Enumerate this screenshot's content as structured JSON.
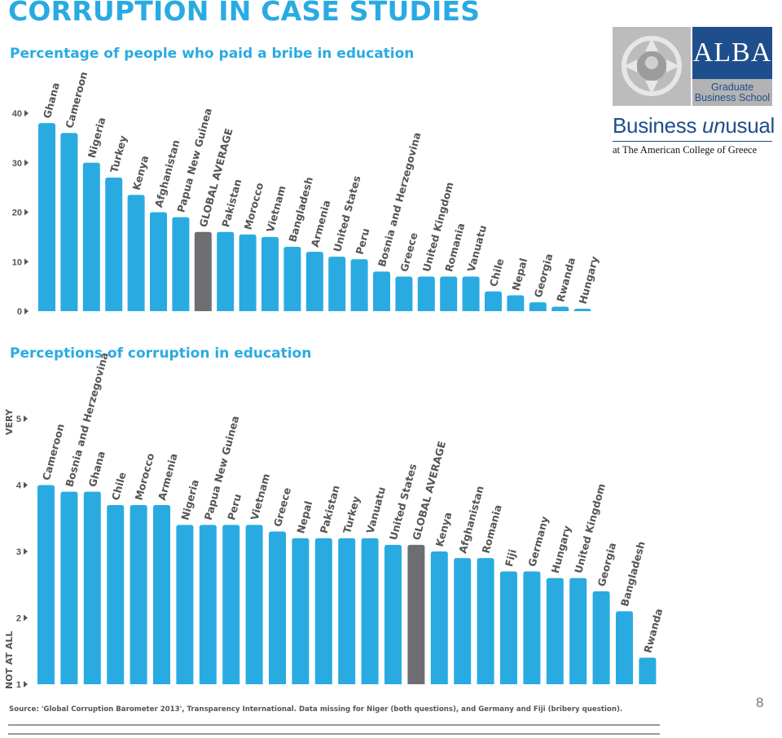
{
  "slide": {
    "title": "CORRUPTION IN CASE STUDIES",
    "source": "Source: 'Global Corruption Barometer 2013', Transparency International. Data missing for Niger (both questions), and Germany and Fiji (bribery question).",
    "page_number": "8"
  },
  "logo": {
    "alba": "ALBA",
    "school_line1": "Graduate",
    "school_line2": "Business School",
    "tagline_plain": "Business ",
    "tagline_italic": "un",
    "tagline_rest": "usual",
    "college": "at The American College of Greece"
  },
  "colors": {
    "bar": "#29abe2",
    "average_bar": "#6d6e71",
    "heading": "#29abe2",
    "brand_blue": "#1f4e8c"
  },
  "chart_data": [
    {
      "type": "bar",
      "title": "Percentage of people who paid a bribe in education",
      "categories": [
        "Ghana",
        "Cameroon",
        "Nigeria",
        "Turkey",
        "Kenya",
        "Afghanistan",
        "Papua New Guinea",
        "GLOBAL AVERAGE",
        "Pakistan",
        "Morocco",
        "Vietnam",
        "Bangladesh",
        "Armenia",
        "United States",
        "Peru",
        "Bosnia and Herzegovina",
        "Greece",
        "United Kingdom",
        "Romania",
        "Vanuatu",
        "Chile",
        "Nepal",
        "Georgia",
        "Rwanda",
        "Hungary"
      ],
      "values": [
        38,
        36,
        30,
        27,
        23.5,
        20,
        19,
        16,
        16,
        15.5,
        15,
        13,
        12,
        11,
        10.5,
        8,
        7,
        7,
        7,
        7,
        4,
        3.2,
        1.8,
        0.9,
        0.5
      ],
      "highlight": "GLOBAL AVERAGE",
      "yticks": [
        "0",
        "10",
        "20",
        "30",
        "40"
      ],
      "ylim": [
        0,
        40
      ],
      "xlabel": "",
      "ylabel": ""
    },
    {
      "type": "bar",
      "title": "Perceptions of corruption in education",
      "categories": [
        "Cameroon",
        "Bosnia and Herzegovina",
        "Ghana",
        "Chile",
        "Morocco",
        "Armenia",
        "Nigeria",
        "Papua New Guinea",
        "Peru",
        "Vietnam",
        "Greece",
        "Nepal",
        "Pakistan",
        "Turkey",
        "Vanuatu",
        "United States",
        "GLOBAL AVERAGE",
        "Kenya",
        "Afghanistan",
        "Romania",
        "Fiji",
        "Germany",
        "Hungary",
        "United Kingdom",
        "Georgia",
        "Bangladesh",
        "Rwanda"
      ],
      "values": [
        4.0,
        3.9,
        3.9,
        3.7,
        3.7,
        3.7,
        3.4,
        3.4,
        3.4,
        3.4,
        3.3,
        3.2,
        3.2,
        3.2,
        3.2,
        3.1,
        3.1,
        3.0,
        2.9,
        2.9,
        2.7,
        2.7,
        2.6,
        2.6,
        2.4,
        2.1,
        1.4
      ],
      "highlight": "GLOBAL AVERAGE",
      "yticks": [
        "1",
        "2",
        "3",
        "4",
        "5"
      ],
      "ylim": [
        1,
        5
      ],
      "ylabel_top": "VERY",
      "ylabel_bottom": "NOT AT ALL",
      "xlabel": ""
    }
  ]
}
